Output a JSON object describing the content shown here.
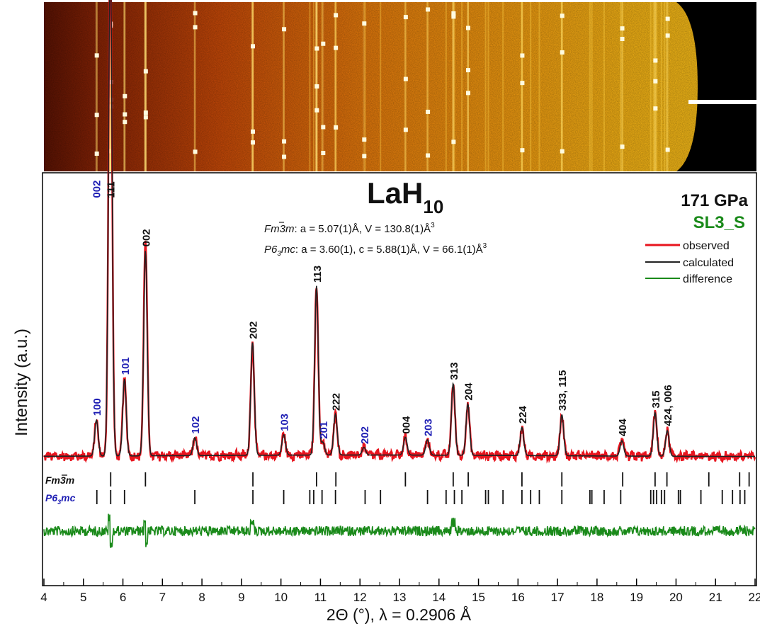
{
  "chart_data": {
    "type": "line",
    "title": "LaH",
    "title_subscript": "10",
    "pressure": "171 GPa",
    "sample": "SL3_S",
    "xlabel": "2Θ (°), λ = 0.2906 Å",
    "ylabel": "Intensity (a.u.)",
    "xlim": [
      4,
      22
    ],
    "x_ticks": [
      4,
      5,
      6,
      7,
      8,
      9,
      10,
      11,
      12,
      13,
      14,
      15,
      16,
      17,
      18,
      19,
      20,
      21,
      22
    ],
    "x_tick_labels": [
      "4",
      "5",
      "6",
      "7",
      "8",
      "9",
      "10",
      "11",
      "12",
      "13",
      "14",
      "15",
      "16",
      "17",
      "18",
      "19",
      "20",
      "21",
      "22"
    ],
    "ylim": [
      0,
      100
    ],
    "grid": false,
    "legend_position": "top-right",
    "legend": [
      {
        "name": "observed",
        "color": "#e8141e"
      },
      {
        "name": "calculated",
        "color": "#222222"
      },
      {
        "name": "difference",
        "color": "#1a8a1a"
      }
    ],
    "phases": [
      {
        "name": "Fm3̄m",
        "name_main": "Fm",
        "name_bar": "3",
        "name_tail": "m",
        "params": "a = 5.07(1)Å, V = 130.8(1)Å",
        "params_sup": "3",
        "color": "#111111",
        "ticks": [
          5.69,
          6.57,
          9.29,
          10.9,
          11.39,
          13.15,
          14.36,
          14.74,
          16.1,
          17.11,
          18.65,
          19.47,
          19.77,
          20.83,
          21.61,
          21.85
        ]
      },
      {
        "name": "P6₃mc",
        "name_main": "P6",
        "name_sub": "3",
        "name_tail": "mc",
        "params": "a = 3.60(1), c = 5.88(1)Å, V = 66.1(1)Å",
        "params_sup": "3",
        "color": "#1f1fb4",
        "ticks": [
          5.34,
          5.69,
          6.04,
          7.82,
          9.29,
          10.07,
          10.73,
          10.83,
          11.04,
          11.38,
          12.13,
          12.52,
          13.71,
          14.18,
          14.39,
          14.58,
          15.18,
          15.25,
          15.62,
          16.1,
          16.32,
          16.54,
          17.11,
          17.82,
          17.87,
          18.18,
          18.6,
          19.36,
          19.43,
          19.51,
          19.63,
          19.71,
          20.06,
          20.11,
          20.63,
          21.17,
          21.43,
          21.62,
          21.74
        ]
      }
    ],
    "peaks": [
      {
        "x": 5.33,
        "h": 14,
        "label": "100",
        "color": "#1f1fb4"
      },
      {
        "x": 5.68,
        "h": 99,
        "label": "111",
        "color": "#111111"
      },
      {
        "x": 5.68,
        "h": 99,
        "label": "002",
        "color": "#1f1fb4"
      },
      {
        "x": 6.04,
        "h": 30,
        "label": "101",
        "color": "#1f1fb4"
      },
      {
        "x": 6.57,
        "h": 80,
        "label": "002",
        "color": "#111111"
      },
      {
        "x": 7.82,
        "h": 7,
        "label": "102",
        "color": "#1f1fb4"
      },
      {
        "x": 9.28,
        "h": 44,
        "label": "202",
        "color": "#111111"
      },
      {
        "x": 10.07,
        "h": 8,
        "label": "103",
        "color": "#1f1fb4"
      },
      {
        "x": 10.9,
        "h": 66,
        "label": "113",
        "color": "#111111"
      },
      {
        "x": 11.06,
        "h": 5,
        "label": "201",
        "color": "#1f1fb4"
      },
      {
        "x": 11.38,
        "h": 16,
        "label": "222",
        "color": "#111111"
      },
      {
        "x": 12.1,
        "h": 3,
        "label": "202",
        "color": "#1f1fb4"
      },
      {
        "x": 13.15,
        "h": 7,
        "label": "004",
        "color": "#111111"
      },
      {
        "x": 13.71,
        "h": 6,
        "label": "203",
        "color": "#1f1fb4"
      },
      {
        "x": 14.36,
        "h": 28,
        "label": "313",
        "color": "#111111"
      },
      {
        "x": 14.73,
        "h": 20,
        "label": "204",
        "color": "#111111"
      },
      {
        "x": 16.1,
        "h": 11,
        "label": "224",
        "color": "#111111"
      },
      {
        "x": 17.11,
        "h": 16,
        "label": "333, 115",
        "color": "#111111"
      },
      {
        "x": 18.63,
        "h": 6,
        "label": "404",
        "color": "#111111"
      },
      {
        "x": 19.47,
        "h": 17,
        "label": "315",
        "color": "#111111"
      },
      {
        "x": 19.78,
        "h": 10,
        "label": "424, 006",
        "color": "#111111"
      }
    ]
  }
}
